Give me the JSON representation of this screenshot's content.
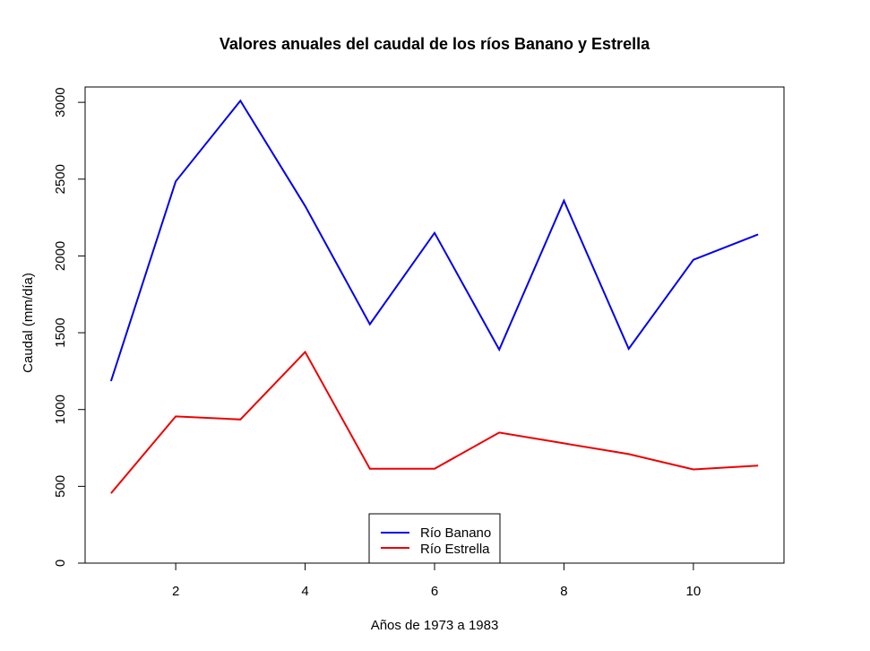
{
  "chart_data": {
    "type": "line",
    "title": "Valores anuales del caudal de los ríos Banano y Estrella",
    "xlabel": "Años de 1973 a 1983",
    "ylabel": "Caudal (mm/día)",
    "x": [
      1,
      2,
      3,
      4,
      5,
      6,
      7,
      8,
      9,
      10,
      11
    ],
    "xlim": [
      0.6,
      11.4
    ],
    "ylim": [
      0,
      3100
    ],
    "xticks": [
      2,
      4,
      6,
      8,
      10
    ],
    "yticks": [
      0,
      500,
      1000,
      1500,
      2000,
      2500,
      3000
    ],
    "series": [
      {
        "name": "Río Banano",
        "color": "#0000ee",
        "values": [
          1185,
          2485,
          3010,
          2325,
          1555,
          2150,
          1390,
          2360,
          1395,
          1975,
          2140
        ]
      },
      {
        "name": "Río Estrella",
        "color": "#ee0000",
        "values": [
          455,
          955,
          935,
          1375,
          615,
          615,
          850,
          780,
          710,
          610,
          635
        ]
      }
    ],
    "legend": "bottom-center",
    "grid": false
  }
}
